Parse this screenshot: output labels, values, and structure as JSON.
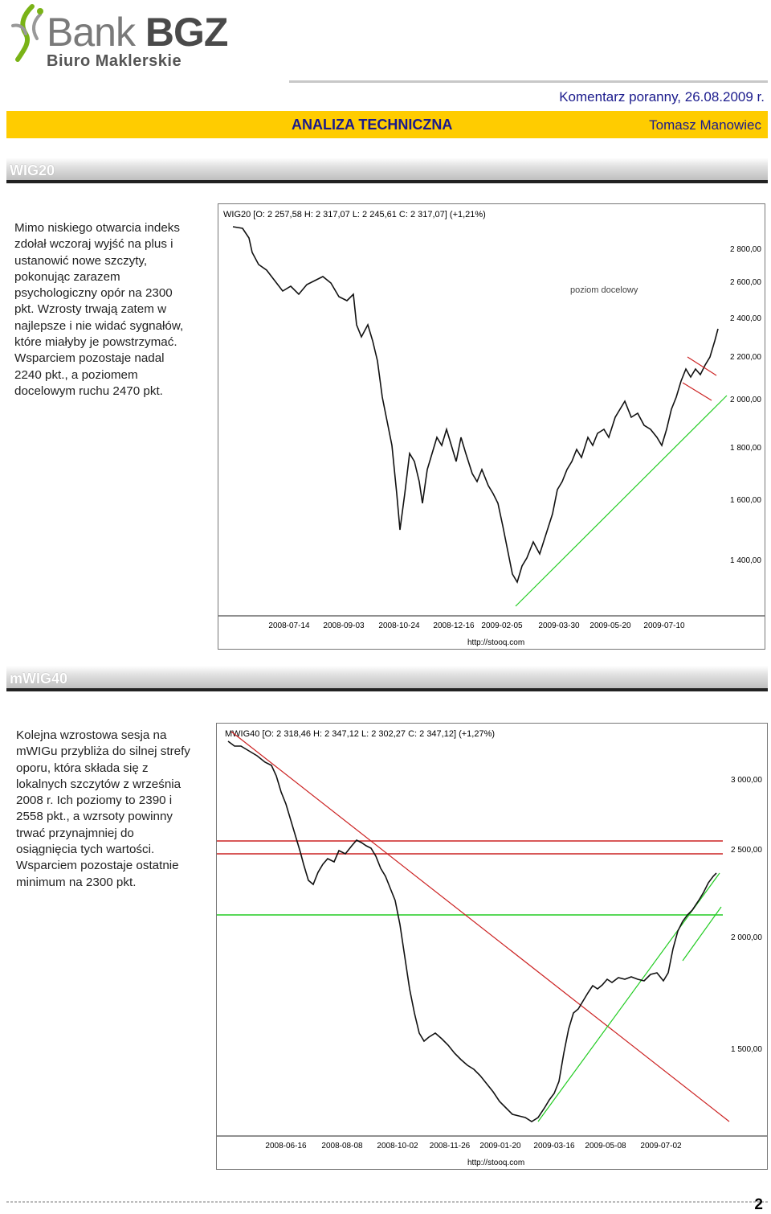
{
  "brand": {
    "name_light": "Bank",
    "name_bold": "BGZ",
    "division": "Biuro Maklerskie",
    "accent": "#ffcc00",
    "text_blue": "#1a1a8c"
  },
  "header": {
    "report": "Komentarz poranny, 26.08.2009 r.",
    "section": "ANALIZA TECHNICZNA",
    "author": "Tomasz Manowiec"
  },
  "wig20": {
    "heading": "WIG20",
    "lines": [
      "Mimo niskiego otwarcia indeks",
      "zdołał wczoraj wyjść na plus i",
      "ustanowić nowe szczyty,",
      "pokonując zarazem",
      "psychologiczny opór na 2300",
      "pkt. Wzrosty trwają zatem w",
      "najlepsze i nie widać sygnałów,",
      "które miałyby je powstrzymać.",
      "Wsparciem pozostaje nadal",
      "2240 pkt., a poziomem",
      "docelowym ruchu 2470 pkt."
    ],
    "chart": {
      "legend": "WIG20 [O: 2 257,58 H: 2 317,07 L: 2 245,61 C: 2 317,07] (+1,21%)",
      "annotation": "poziom docelowy",
      "source": "http://stooq.com",
      "y_ticks": [
        "2 800,00",
        "2 600,00",
        "2 400,00",
        "2 200,00",
        "2 000,00",
        "1 800,00",
        "1 600,00",
        "1 400,00"
      ],
      "x_ticks": [
        "2008-07-14",
        "2008-09-03",
        "2008-10-24",
        "2008-12-16",
        "2009-02-05",
        "2009-03-30",
        "2009-05-20",
        "2009-07-10"
      ]
    }
  },
  "mwig40": {
    "heading": "mWIG40",
    "lines": [
      "Kolejna wzrostowa sesja na",
      "mWIGu przybliża do silnej strefy",
      "oporu, która składa się z",
      "lokalnych szczytów z września",
      "2008 r. Ich poziomy to 2390 i",
      "2558 pkt., a wzrsoty powinny",
      "trwać przynajmniej do",
      "osiągnięcia tych wartości.",
      "Wsparciem pozostaje ostatnie",
      "minimum na 2300 pkt."
    ],
    "chart": {
      "legend": "MWIG40 [O: 2 318,46 H: 2 347,12 L: 2 302,27 C: 2 347,12] (+1,27%)",
      "source": "http://stooq.com",
      "y_ticks": [
        "3 000,00",
        "2 500,00",
        "2 000,00",
        "1 500,00"
      ],
      "x_ticks": [
        "2008-06-16",
        "2008-08-08",
        "2008-10-02",
        "2008-11-26",
        "2009-01-20",
        "2009-03-16",
        "2009-05-08",
        "2009-07-02"
      ]
    }
  },
  "footer": {
    "page": "2"
  }
}
